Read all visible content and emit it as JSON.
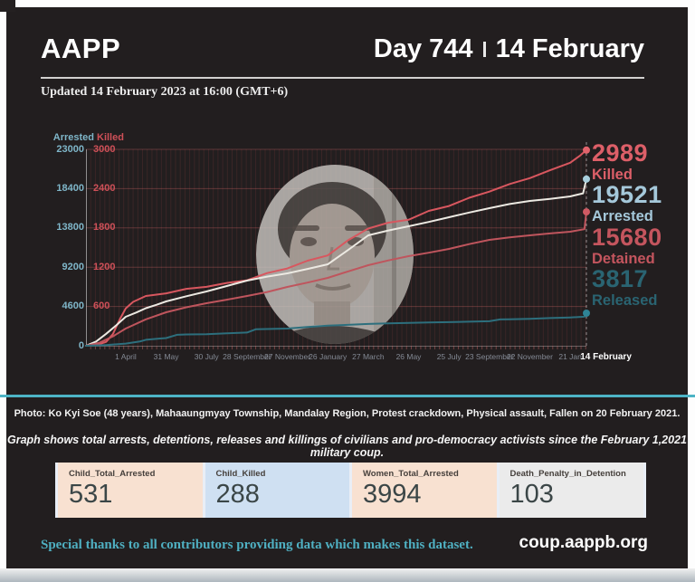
{
  "header": {
    "brand": "AAPP",
    "day": "Day 744",
    "date": "14 February",
    "updated": "Updated 14 February 2023 at 16:00 (GMT+6)"
  },
  "stats": [
    {
      "value": "2989",
      "label": "Killed",
      "color": "#dd5f68"
    },
    {
      "value": "19521",
      "label": "Arrested",
      "color": "#a5c8da"
    },
    {
      "value": "15680",
      "label": "Detained",
      "color": "#c4555e"
    },
    {
      "value": "3817",
      "label": "Released",
      "color": "#2a6472"
    }
  ],
  "chart_data": {
    "type": "line",
    "x_unit": "days since 1 February 2021 coup",
    "x_max_day": 743,
    "left_axis": {
      "label": "Arrested",
      "color": "#7fb6c9",
      "max": 23000,
      "ticks_top_down": [
        23000,
        18400,
        13800,
        9200,
        4600,
        0
      ]
    },
    "right_axis": {
      "label": "Killed",
      "color": "#cf5058",
      "max": 3000,
      "ticks_top_down": [
        3000,
        2400,
        1800,
        1200,
        600
      ]
    },
    "x_ticks": [
      {
        "day": 59,
        "label": "1 April"
      },
      {
        "day": 119,
        "label": "31 May"
      },
      {
        "day": 179,
        "label": "30 July"
      },
      {
        "day": 239,
        "label": "28 September"
      },
      {
        "day": 299,
        "label": "27 November"
      },
      {
        "day": 359,
        "label": "26 January"
      },
      {
        "day": 419,
        "label": "27 March"
      },
      {
        "day": 479,
        "label": "26 May"
      },
      {
        "day": 539,
        "label": "25 July"
      },
      {
        "day": 599,
        "label": "23 September"
      },
      {
        "day": 659,
        "label": "22 November"
      },
      {
        "day": 719,
        "label": "21 Jan"
      },
      {
        "day": 743,
        "label": "14 February",
        "emphasis": true
      }
    ],
    "series": [
      {
        "name": "Killed",
        "axis": "right",
        "color": "#d8575f",
        "dot": "#e2636c",
        "final": 2989,
        "points": [
          [
            0,
            0
          ],
          [
            20,
            25
          ],
          [
            30,
            60
          ],
          [
            40,
            180
          ],
          [
            50,
            400
          ],
          [
            59,
            570
          ],
          [
            70,
            670
          ],
          [
            89,
            760
          ],
          [
            119,
            800
          ],
          [
            149,
            870
          ],
          [
            179,
            900
          ],
          [
            209,
            960
          ],
          [
            239,
            1000
          ],
          [
            269,
            1110
          ],
          [
            299,
            1180
          ],
          [
            329,
            1300
          ],
          [
            359,
            1380
          ],
          [
            389,
            1610
          ],
          [
            419,
            1790
          ],
          [
            449,
            1880
          ],
          [
            479,
            1925
          ],
          [
            509,
            2060
          ],
          [
            539,
            2135
          ],
          [
            569,
            2260
          ],
          [
            599,
            2355
          ],
          [
            629,
            2470
          ],
          [
            659,
            2560
          ],
          [
            689,
            2680
          ],
          [
            719,
            2795
          ],
          [
            733,
            2900
          ],
          [
            743,
            2989
          ]
        ]
      },
      {
        "name": "Arrested",
        "axis": "left",
        "color": "#ece9e2",
        "dot": "#a9cfdd",
        "final": 19521,
        "points": [
          [
            0,
            0
          ],
          [
            15,
            500
          ],
          [
            30,
            1400
          ],
          [
            45,
            2400
          ],
          [
            59,
            3390
          ],
          [
            75,
            3900
          ],
          [
            89,
            4400
          ],
          [
            105,
            4800
          ],
          [
            119,
            5190
          ],
          [
            149,
            5800
          ],
          [
            179,
            6360
          ],
          [
            209,
            7000
          ],
          [
            239,
            7630
          ],
          [
            269,
            8100
          ],
          [
            299,
            8480
          ],
          [
            329,
            9000
          ],
          [
            359,
            9540
          ],
          [
            389,
            11200
          ],
          [
            419,
            12930
          ],
          [
            449,
            13500
          ],
          [
            479,
            13990
          ],
          [
            509,
            14500
          ],
          [
            539,
            15050
          ],
          [
            569,
            15600
          ],
          [
            599,
            16110
          ],
          [
            629,
            16600
          ],
          [
            659,
            16960
          ],
          [
            689,
            17200
          ],
          [
            719,
            17490
          ],
          [
            738,
            17850
          ],
          [
            743,
            19521
          ]
        ]
      },
      {
        "name": "Detained",
        "axis": "left",
        "color": "#bf555d",
        "dot": "#d05a63",
        "final": 15680,
        "points": [
          [
            0,
            0
          ],
          [
            20,
            350
          ],
          [
            40,
            1100
          ],
          [
            59,
            2010
          ],
          [
            89,
            3100
          ],
          [
            119,
            3920
          ],
          [
            149,
            4500
          ],
          [
            179,
            4980
          ],
          [
            209,
            5400
          ],
          [
            239,
            5830
          ],
          [
            269,
            6300
          ],
          [
            299,
            6890
          ],
          [
            329,
            7400
          ],
          [
            359,
            7950
          ],
          [
            389,
            8700
          ],
          [
            419,
            9430
          ],
          [
            449,
            10000
          ],
          [
            479,
            10490
          ],
          [
            509,
            10900
          ],
          [
            539,
            11340
          ],
          [
            569,
            11900
          ],
          [
            599,
            12400
          ],
          [
            629,
            12700
          ],
          [
            659,
            12930
          ],
          [
            689,
            13150
          ],
          [
            719,
            13360
          ],
          [
            740,
            13650
          ],
          [
            743,
            15680
          ]
        ]
      },
      {
        "name": "Released",
        "axis": "left",
        "color": "#2d6f7d",
        "dot": "#2f8496",
        "final": 3817,
        "points": [
          [
            0,
            0
          ],
          [
            30,
            80
          ],
          [
            59,
            250
          ],
          [
            80,
            500
          ],
          [
            89,
            700
          ],
          [
            110,
            850
          ],
          [
            119,
            900
          ],
          [
            135,
            1280
          ],
          [
            149,
            1320
          ],
          [
            179,
            1360
          ],
          [
            209,
            1450
          ],
          [
            239,
            1550
          ],
          [
            252,
            1930
          ],
          [
            269,
            1960
          ],
          [
            299,
            2010
          ],
          [
            329,
            2200
          ],
          [
            359,
            2350
          ],
          [
            389,
            2450
          ],
          [
            419,
            2550
          ],
          [
            449,
            2620
          ],
          [
            479,
            2670
          ],
          [
            509,
            2720
          ],
          [
            539,
            2770
          ],
          [
            569,
            2820
          ],
          [
            599,
            2870
          ],
          [
            615,
            3080
          ],
          [
            629,
            3110
          ],
          [
            659,
            3160
          ],
          [
            689,
            3240
          ],
          [
            719,
            3320
          ],
          [
            740,
            3400
          ],
          [
            743,
            3817
          ]
        ]
      }
    ]
  },
  "photo_caption": "Photo: Ko Kyi Soe (48 years),  Mahaaungmyay Township, Mandalay Region, Protest crackdown, Physical assault, Fallen on 20 February 2021.",
  "graph_note": "Graph shows total arrests, detentions, releases and killings of civilians and pro-democracy activists since the February 1,2021 military coup.",
  "cards": [
    {
      "label": "Child_Total_Arrested",
      "value": "531",
      "bg": "#f8e1d1"
    },
    {
      "label": "Child_Killed",
      "value": "288",
      "bg": "#cfe0f2"
    },
    {
      "label": "Women_Total_Arrested",
      "value": "3994",
      "bg": "#f8e1d1"
    },
    {
      "label": "Death_Penalty_in_Detention",
      "value": "103",
      "bg": "#ebebeb"
    }
  ],
  "footer": {
    "thanks": "Special thanks to all contributors providing data which makes this dataset.",
    "site": "coup.aappb.org"
  }
}
